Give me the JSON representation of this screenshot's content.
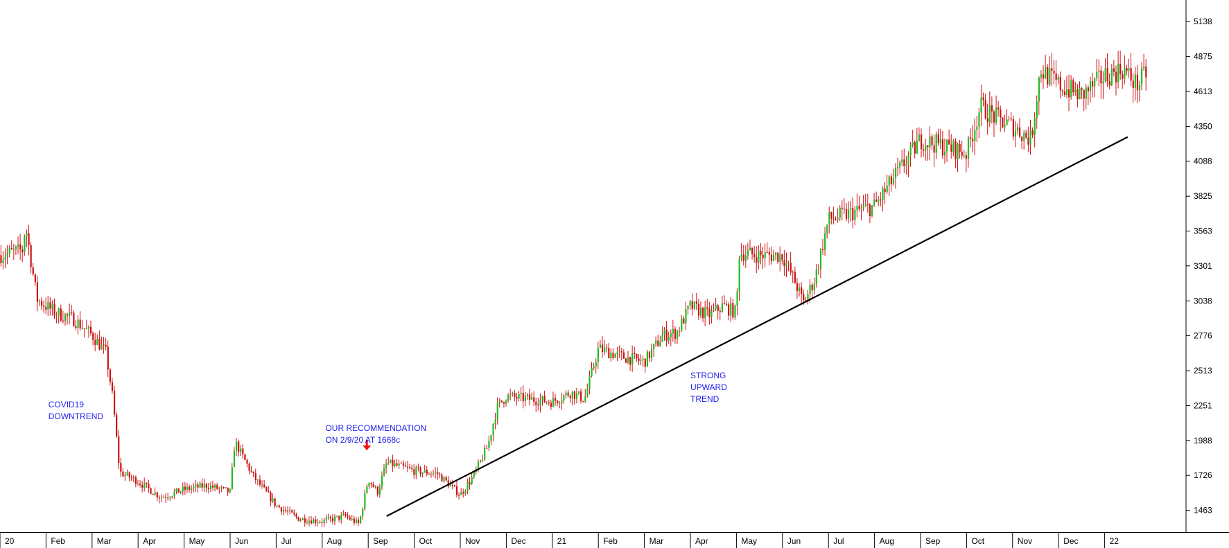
{
  "chart_data": {
    "type": "candlestick",
    "colors": {
      "up": "#22bb22",
      "down": "#cc1111",
      "trendline": "#000000",
      "annotation": "#2222ee",
      "arrow": "#ee1111"
    },
    "ylim": [
      1300,
      5300
    ],
    "y_ticks": [
      5138,
      4875,
      4613,
      4350,
      4088,
      3825,
      3563,
      3301,
      3038,
      2776,
      2513,
      2251,
      1988,
      1726,
      1463
    ],
    "x_ticks": [
      {
        "label": "20",
        "m": 0
      },
      {
        "label": "Feb",
        "m": 1
      },
      {
        "label": "Mar",
        "m": 2
      },
      {
        "label": "Apr",
        "m": 3
      },
      {
        "label": "May",
        "m": 4
      },
      {
        "label": "Jun",
        "m": 5
      },
      {
        "label": "Jul",
        "m": 6
      },
      {
        "label": "Aug",
        "m": 7
      },
      {
        "label": "Sep",
        "m": 8
      },
      {
        "label": "Oct",
        "m": 9
      },
      {
        "label": "Nov",
        "m": 10
      },
      {
        "label": "Dec",
        "m": 11
      },
      {
        "label": "21",
        "m": 12
      },
      {
        "label": "Feb",
        "m": 13
      },
      {
        "label": "Mar",
        "m": 14
      },
      {
        "label": "Apr",
        "m": 15
      },
      {
        "label": "May",
        "m": 16
      },
      {
        "label": "Jun",
        "m": 17
      },
      {
        "label": "Jul",
        "m": 18
      },
      {
        "label": "Aug",
        "m": 19
      },
      {
        "label": "Sep",
        "m": 20
      },
      {
        "label": "Oct",
        "m": 21
      },
      {
        "label": "Nov",
        "m": 22
      },
      {
        "label": "Dec",
        "m": 23
      },
      {
        "label": "22",
        "m": 24
      }
    ],
    "price_path": [
      [
        0.0,
        3380
      ],
      [
        0.5,
        3420
      ],
      [
        0.55,
        3620
      ],
      [
        0.8,
        3050
      ],
      [
        1.2,
        2950
      ],
      [
        1.6,
        2900
      ],
      [
        2.0,
        2780
      ],
      [
        2.3,
        2650
      ],
      [
        2.45,
        2300
      ],
      [
        2.6,
        1750
      ],
      [
        3.0,
        1680
      ],
      [
        3.5,
        1560
      ],
      [
        4.0,
        1620
      ],
      [
        4.5,
        1650
      ],
      [
        5.0,
        1600
      ],
      [
        5.1,
        1980
      ],
      [
        5.5,
        1720
      ],
      [
        6.0,
        1500
      ],
      [
        6.5,
        1400
      ],
      [
        7.0,
        1380
      ],
      [
        7.5,
        1420
      ],
      [
        7.8,
        1360
      ],
      [
        8.0,
        1700
      ],
      [
        8.2,
        1600
      ],
      [
        8.4,
        1820
      ],
      [
        9.0,
        1760
      ],
      [
        9.5,
        1740
      ],
      [
        10.0,
        1580
      ],
      [
        10.3,
        1730
      ],
      [
        10.6,
        1950
      ],
      [
        10.8,
        2240
      ],
      [
        11.0,
        2320
      ],
      [
        11.5,
        2300
      ],
      [
        12.0,
        2280
      ],
      [
        12.4,
        2350
      ],
      [
        12.7,
        2300
      ],
      [
        13.0,
        2680
      ],
      [
        13.5,
        2620
      ],
      [
        14.0,
        2580
      ],
      [
        14.4,
        2780
      ],
      [
        14.7,
        2800
      ],
      [
        15.0,
        3000
      ],
      [
        15.4,
        2930
      ],
      [
        15.7,
        3000
      ],
      [
        16.0,
        2950
      ],
      [
        16.05,
        3400
      ],
      [
        16.5,
        3380
      ],
      [
        17.0,
        3380
      ],
      [
        17.3,
        3160
      ],
      [
        17.45,
        3020
      ],
      [
        17.7,
        3200
      ],
      [
        18.0,
        3650
      ],
      [
        18.5,
        3700
      ],
      [
        19.0,
        3750
      ],
      [
        19.5,
        4000
      ],
      [
        20.0,
        4250
      ],
      [
        20.5,
        4200
      ],
      [
        21.0,
        4150
      ],
      [
        21.3,
        4500
      ],
      [
        21.7,
        4400
      ],
      [
        22.0,
        4350
      ],
      [
        22.4,
        4250
      ],
      [
        22.6,
        4780
      ],
      [
        23.0,
        4660
      ],
      [
        23.5,
        4580
      ],
      [
        24.0,
        4730
      ],
      [
        24.4,
        4780
      ],
      [
        24.7,
        4660
      ],
      [
        24.9,
        4750
      ]
    ],
    "trendline": [
      [
        8.4,
        1420
      ],
      [
        24.5,
        4270
      ]
    ],
    "annotations": [
      {
        "id": "covid",
        "text": "COVID19\nDOWNTREND",
        "m": 1.05,
        "y": 2270
      },
      {
        "id": "recommendation",
        "text": "OUR RECOMMENDATION\nON 2/9/20 AT 1668c",
        "m": 7.07,
        "y": 2090
      },
      {
        "id": "uptrend",
        "text": "STRONG\nUPWARD\nTREND",
        "m": 15.0,
        "y": 2490
      }
    ],
    "arrow_marker": {
      "m": 7.97,
      "y": 1920
    }
  }
}
